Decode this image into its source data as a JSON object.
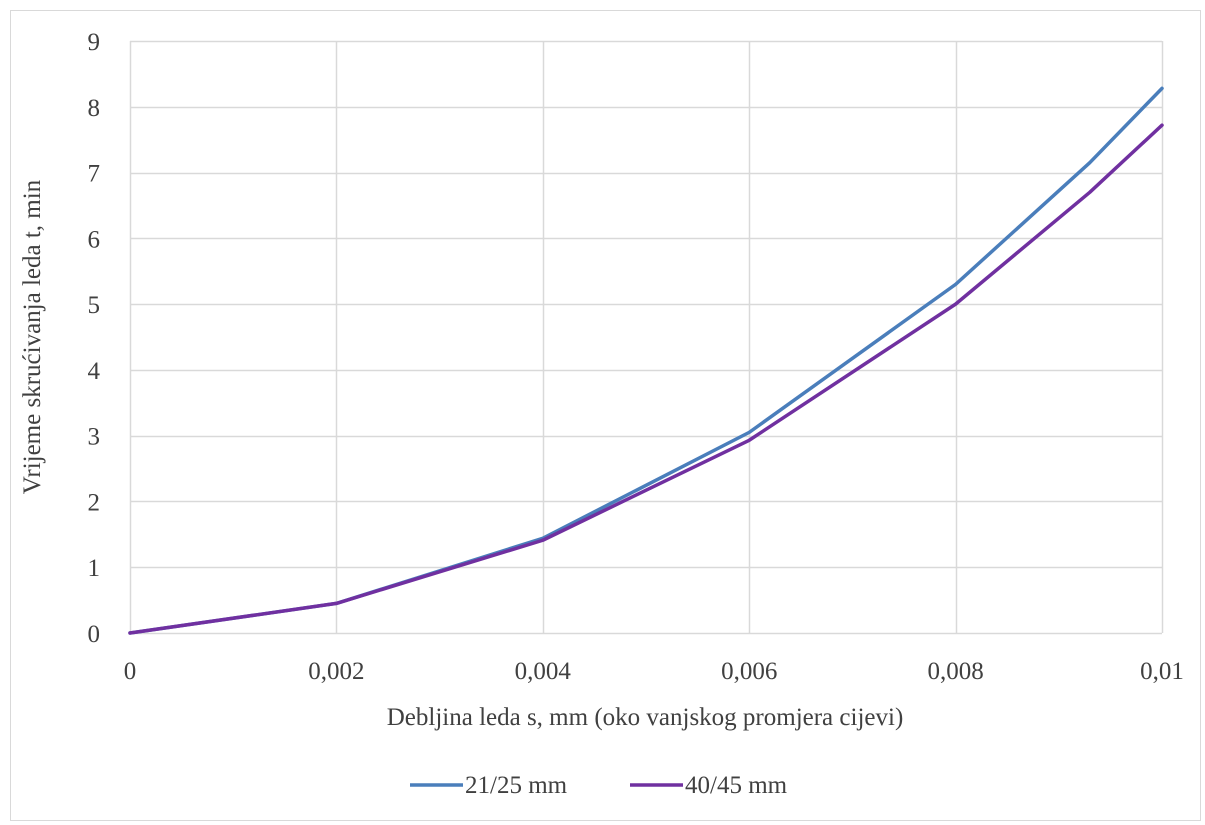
{
  "chart_data": {
    "type": "line",
    "title": "",
    "xlabel": "Debljina leda s, mm (oko vanjskog promjera cijevi)",
    "ylabel": "Vrijeme skrućivanja leda t, min",
    "xlim": [
      0,
      0.01
    ],
    "ylim": [
      0,
      9
    ],
    "x_ticks": [
      0,
      0.002,
      0.004,
      0.006,
      0.008,
      0.01
    ],
    "x_tick_labels": [
      "0",
      "0,002",
      "0,004",
      "0,006",
      "0,008",
      "0,01"
    ],
    "y_ticks": [
      0,
      1,
      2,
      3,
      4,
      5,
      6,
      7,
      8,
      9
    ],
    "y_tick_labels": [
      "0",
      "1",
      "2",
      "3",
      "4",
      "5",
      "6",
      "7",
      "8",
      "9"
    ],
    "grid": true,
    "legend_position": "bottom",
    "series": [
      {
        "name": "21/25 mm",
        "color": "#4a7ebb",
        "x": [
          0,
          0.002,
          0.004,
          0.006,
          0.008,
          0.0093,
          0.01
        ],
        "y": [
          0,
          0.45,
          1.44,
          3.05,
          5.3,
          7.15,
          8.28
        ]
      },
      {
        "name": "40/45 mm",
        "color": "#7030a0",
        "x": [
          0,
          0.002,
          0.004,
          0.006,
          0.008,
          0.0093,
          0.01
        ],
        "y": [
          0,
          0.45,
          1.41,
          2.93,
          5.0,
          6.7,
          7.72
        ]
      }
    ]
  }
}
